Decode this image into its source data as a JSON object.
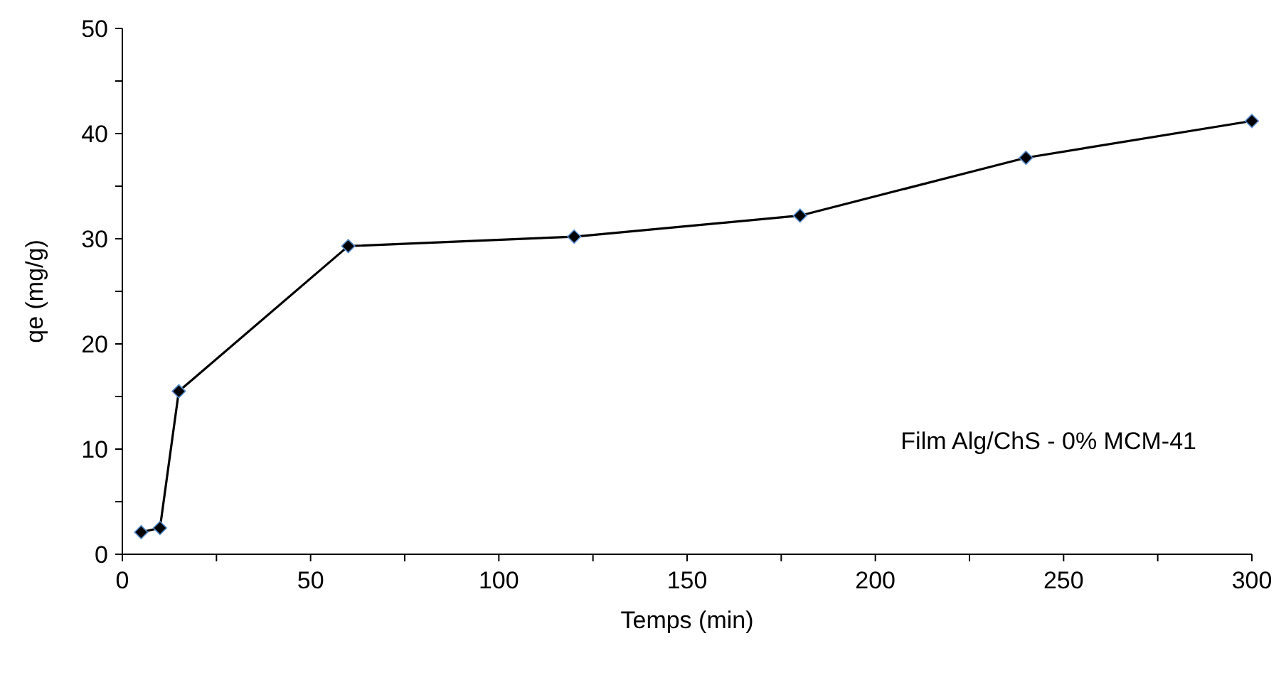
{
  "chart_data": {
    "type": "line",
    "xlabel": "Temps (min)",
    "ylabel": "qe (mg/g)",
    "x": [
      5,
      10,
      15,
      60,
      120,
      180,
      240,
      300
    ],
    "series": [
      {
        "color": "#000000",
        "values": [
          2.1,
          2.5,
          15.5,
          29.3,
          30.2,
          32.2,
          37.7,
          41.2
        ]
      }
    ],
    "xlim": [
      0,
      300
    ],
    "xticks": [
      0,
      {
        "value": 25,
        "label": null
      },
      50,
      {
        "value": 75,
        "label": null
      },
      100,
      {
        "value": 125,
        "label": null
      },
      150,
      {
        "value": 175,
        "label": null
      },
      200,
      {
        "value": 225,
        "label": null
      },
      250,
      {
        "value": 275,
        "label": null
      },
      300
    ],
    "ylim": [
      0,
      50
    ],
    "yticks": [
      0,
      {
        "value": 5,
        "label": null
      },
      10,
      {
        "value": 15,
        "label": null
      },
      20,
      {
        "value": 25,
        "label": null
      },
      30,
      {
        "value": 35,
        "label": null
      },
      40,
      {
        "value": 45,
        "label": null
      },
      50
    ],
    "annotations": [
      "Film Alg/ChS - 0% MCM-41"
    ],
    "marker": "diamond",
    "line_style": "solid",
    "grid": false
  }
}
